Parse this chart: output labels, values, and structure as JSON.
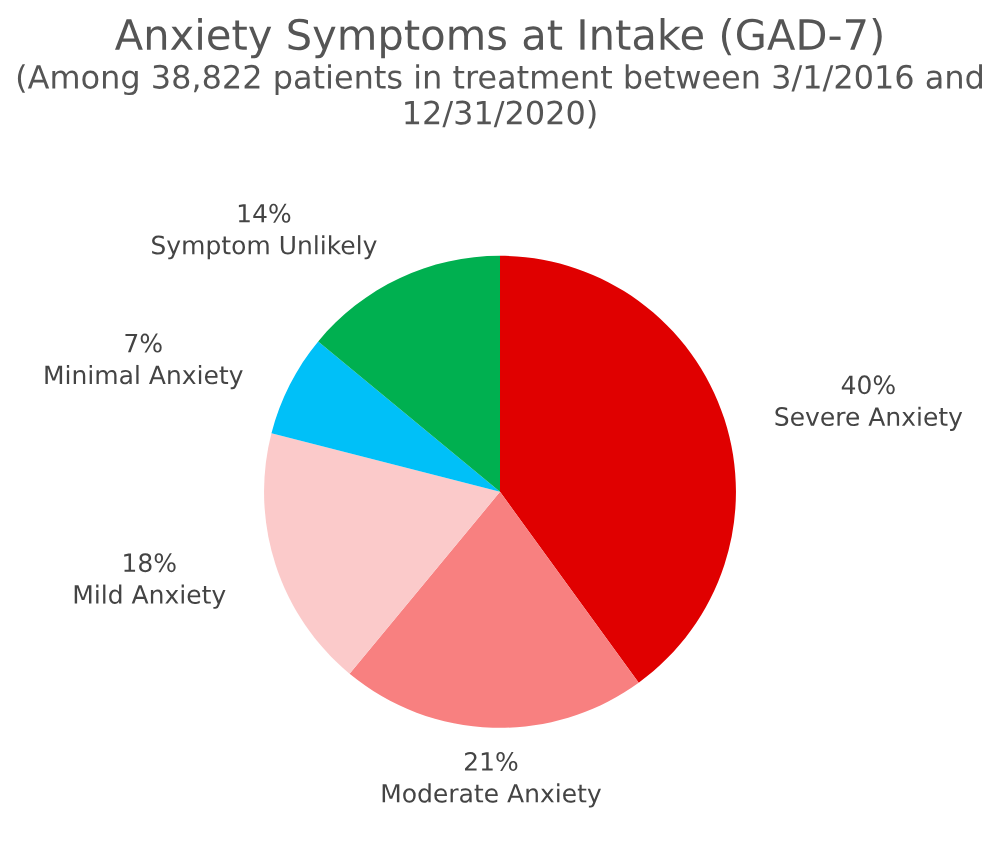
{
  "chart_data": {
    "type": "pie",
    "title": "Anxiety Symptoms at Intake (GAD-7)",
    "subtitle": "(Among 38,822 patients in treatment between 3/1/2016 and 12/31/2020)",
    "categories": [
      "Severe Anxiety",
      "Moderate Anxiety",
      "Mild Anxiety",
      "Minimal Anxiety",
      "Symptom Unlikely"
    ],
    "values": [
      40,
      21,
      18,
      7,
      14
    ],
    "value_labels": [
      "40%",
      "21%",
      "18%",
      "7%",
      "14%"
    ],
    "colors": [
      "#e00000",
      "#f88080",
      "#fbcaca",
      "#00c0f8",
      "#00b050"
    ]
  }
}
